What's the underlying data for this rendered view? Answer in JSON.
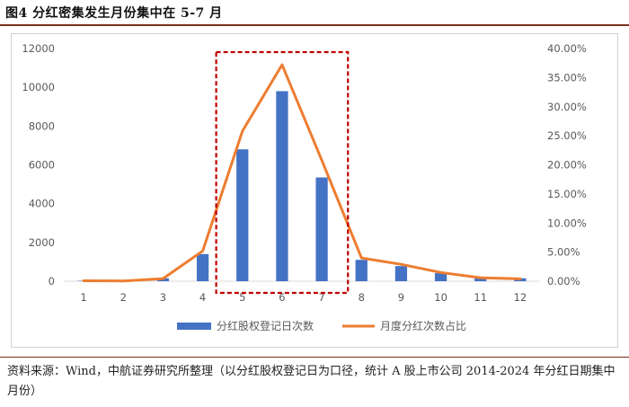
{
  "header": {
    "title": "图4  分红密集发生月份集中在 5-7 月"
  },
  "footer": {
    "source": "资料来源：Wind，中航证券研究所整理（以分红股权登记日为口径，统计 A 股上市公司 2014-2024 年分红日期集中月份）"
  },
  "chart_data": {
    "type": "bar",
    "categories": [
      "1",
      "2",
      "3",
      "4",
      "5",
      "6",
      "7",
      "8",
      "9",
      "10",
      "11",
      "12"
    ],
    "series": [
      {
        "name": "分红股权登记日次数",
        "type": "bar",
        "axis": "left",
        "color": "#4472C4",
        "values": [
          20,
          30,
          150,
          1400,
          6800,
          9800,
          5350,
          1100,
          780,
          420,
          200,
          150
        ]
      },
      {
        "name": "月度分红次数占比",
        "type": "line",
        "axis": "right",
        "color": "#ED7D31",
        "values": [
          0.08,
          0.05,
          0.45,
          5.2,
          25.8,
          37.2,
          20.8,
          4.0,
          2.9,
          1.5,
          0.6,
          0.4
        ]
      }
    ],
    "y_left": {
      "ylim": [
        0,
        12000
      ],
      "ticks": [
        "0",
        "2000",
        "4000",
        "6000",
        "8000",
        "10000",
        "12000"
      ]
    },
    "y_right": {
      "ylim": [
        0,
        40
      ],
      "ticks": [
        "0.00%",
        "5.00%",
        "10.00%",
        "15.00%",
        "20.00%",
        "25.00%",
        "30.00%",
        "35.00%",
        "40.00%"
      ]
    },
    "grid": false,
    "legend": "bottom",
    "highlight": {
      "style": "dashed box",
      "color": "#C00000",
      "from_category": "5",
      "to_category": "7"
    }
  }
}
